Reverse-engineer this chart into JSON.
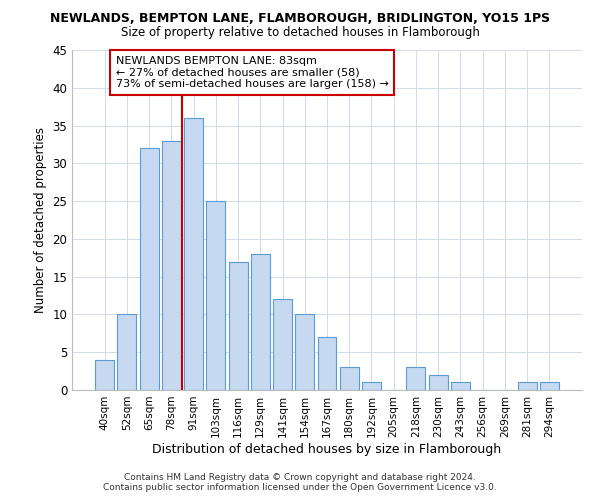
{
  "title1": "NEWLANDS, BEMPTON LANE, FLAMBOROUGH, BRIDLINGTON, YO15 1PS",
  "title2": "Size of property relative to detached houses in Flamborough",
  "xlabel": "Distribution of detached houses by size in Flamborough",
  "ylabel": "Number of detached properties",
  "bar_labels": [
    "40sqm",
    "52sqm",
    "65sqm",
    "78sqm",
    "91sqm",
    "103sqm",
    "116sqm",
    "129sqm",
    "141sqm",
    "154sqm",
    "167sqm",
    "180sqm",
    "192sqm",
    "205sqm",
    "218sqm",
    "230sqm",
    "243sqm",
    "256sqm",
    "269sqm",
    "281sqm",
    "294sqm"
  ],
  "bar_values": [
    4,
    10,
    32,
    33,
    36,
    25,
    17,
    18,
    12,
    10,
    7,
    3,
    1,
    0,
    3,
    2,
    1,
    0,
    0,
    1,
    1
  ],
  "bar_color": "#c6d9f0",
  "bar_edge_color": "#5b9bd5",
  "vline_x": 3.5,
  "vline_color": "#cc0000",
  "annotation_title": "NEWLANDS BEMPTON LANE: 83sqm",
  "annotation_line1": "← 27% of detached houses are smaller (58)",
  "annotation_line2": "73% of semi-detached houses are larger (158) →",
  "annotation_box_color": "#ffffff",
  "annotation_box_edge_color": "#cc0000",
  "ylim": [
    0,
    45
  ],
  "yticks": [
    0,
    5,
    10,
    15,
    20,
    25,
    30,
    35,
    40,
    45
  ],
  "footer_line1": "Contains HM Land Registry data © Crown copyright and database right 2024.",
  "footer_line2": "Contains public sector information licensed under the Open Government Licence v3.0.",
  "background_color": "#ffffff",
  "grid_color": "#c8d8e8"
}
